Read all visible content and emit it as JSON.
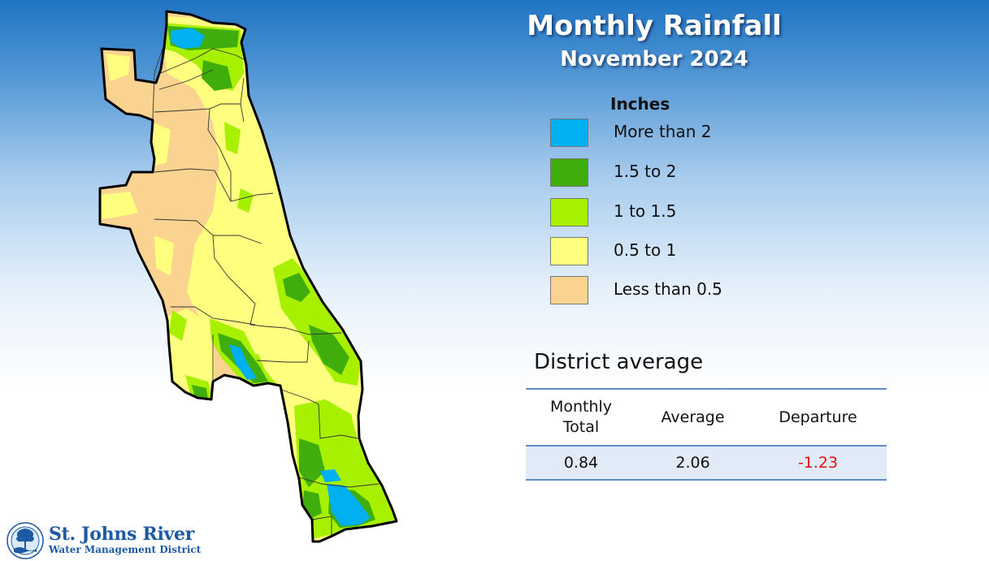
{
  "title": "Monthly Rainfall",
  "subtitle": "November 2024",
  "legend": {
    "title": "Inches",
    "items": [
      {
        "label": "More than 2",
        "color": "#00b0f0"
      },
      {
        "label": "1.5 to 2",
        "color": "#3fae0c"
      },
      {
        "label": "1 to 1.5",
        "color": "#a6f000"
      },
      {
        "label": "0.5 to 1",
        "color": "#ffff7f"
      },
      {
        "label": "Less than 0.5",
        "color": "#fad390"
      }
    ]
  },
  "district_average": {
    "title": "District average",
    "headers": [
      "Monthly\nTotal",
      "Average",
      "Departure"
    ],
    "values": [
      "0.84",
      "2.06",
      "-1.23"
    ],
    "departure_color": "#e01010"
  },
  "logo": {
    "line1": "St. Johns River",
    "line2": "Water Management District"
  }
}
